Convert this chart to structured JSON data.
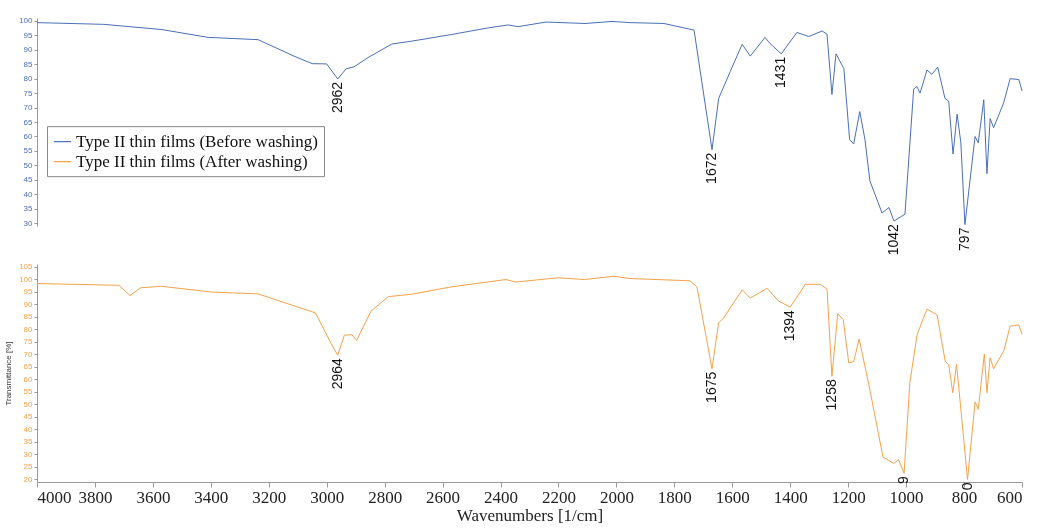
{
  "chart_data": [
    {
      "type": "line",
      "xlim": [
        4000,
        600
      ],
      "xticks": [
        4000,
        3800,
        3600,
        3400,
        3200,
        3000,
        2800,
        2600,
        2400,
        2200,
        2000,
        1800,
        1600,
        1400,
        1200,
        1000,
        800,
        600
      ],
      "ylim": [
        29,
        101
      ],
      "yticks": [
        30,
        35,
        40,
        45,
        50,
        55,
        60,
        65,
        70,
        75,
        80,
        85,
        90,
        95,
        100
      ],
      "tick_labels": "y",
      "legend": "left",
      "series": [
        {
          "name": "Type II thin films (Before washing)",
          "color": "#4a6fb5",
          "x": [
            4000,
            3769,
            3569,
            3410,
            3237,
            3106,
            3050,
            3000,
            2962,
            2933,
            2906,
            2854,
            2775,
            2706,
            2574,
            2441,
            2374,
            2340,
            2243,
            2108,
            2015,
            1953,
            1836,
            1732,
            1670,
            1647,
            1607,
            1566,
            1538,
            1487,
            1470,
            1431,
            1377,
            1336,
            1290,
            1273,
            1256,
            1242,
            1215,
            1195,
            1181,
            1160,
            1142,
            1125,
            1083,
            1059,
            1042,
            1004,
            974,
            963,
            952,
            928,
            911,
            891,
            866,
            853,
            838,
            824,
            811,
            797,
            762,
            751,
            732,
            721,
            710,
            698,
            663,
            641,
            611,
            600
          ],
          "values": [
            99.4,
            98.8,
            97.0,
            94.3,
            93.5,
            87.5,
            85.2,
            85.1,
            79.9,
            83.4,
            84.1,
            87.5,
            92.0,
            93.0,
            95.2,
            97.6,
            98.6,
            98.0,
            99.6,
            99.1,
            99.8,
            99.4,
            99.1,
            96.8,
            55.4,
            73.2,
            82.5,
            91.9,
            87.8,
            94.3,
            92.2,
            88.6,
            96.0,
            94.6,
            96.5,
            95.4,
            74.5,
            88.6,
            83.5,
            58.9,
            57.4,
            68.6,
            58.9,
            44.6,
            33.5,
            35.4,
            30.7,
            33.1,
            76.3,
            77.3,
            75.0,
            83.0,
            81.5,
            84.0,
            73.2,
            72.2,
            53.9,
            67.7,
            57.8,
            29.5,
            60.0,
            57.8,
            72.7,
            47.1,
            66.2,
            63.0,
            71.7,
            80.0,
            79.7,
            75.8
          ]
        }
      ],
      "annotations": [
        {
          "text": "2962",
          "x": 2962,
          "y": 79.9
        },
        {
          "text": "1672",
          "x": 1670,
          "y": 55.4
        },
        {
          "text": "1431",
          "x": 1431,
          "y": 88.6
        },
        {
          "text": "1042",
          "x": 1042,
          "y": 30.7
        },
        {
          "text": "797",
          "x": 797,
          "y": 29.5
        }
      ]
    },
    {
      "type": "line",
      "xlim": [
        4000,
        600
      ],
      "xticks": [
        4000,
        3800,
        3600,
        3400,
        3200,
        3000,
        2800,
        2600,
        2400,
        2200,
        2000,
        1800,
        1600,
        1400,
        1200,
        1000,
        800,
        600
      ],
      "ylim": [
        19,
        106
      ],
      "yticks": [
        20,
        25,
        30,
        35,
        40,
        45,
        50,
        55,
        60,
        65,
        70,
        75,
        80,
        85,
        90,
        95,
        100,
        105
      ],
      "xlabel": "Wavenumbers [1/cm]",
      "ylabel": "Transmittance [%]",
      "series": [
        {
          "name": "Type II thin films (After washing)",
          "color": "#f5a24b",
          "x": [
            4000,
            3717,
            3679,
            3643,
            3570,
            3397,
            3238,
            3039,
            2985,
            2962,
            2939,
            2913,
            2897,
            2847,
            2787,
            2707,
            2574,
            2381,
            2347,
            2202,
            2110,
            2009,
            1953,
            1746,
            1722,
            1670,
            1647,
            1630,
            1566,
            1538,
            1480,
            1440,
            1400,
            1348,
            1296,
            1273,
            1256,
            1236,
            1217,
            1198,
            1181,
            1162,
            1124,
            1080,
            1043,
            1026,
            1007,
            987,
            962,
            928,
            893,
            865,
            853,
            839,
            826,
            813,
            788,
            762,
            751,
            730,
            721,
            710,
            698,
            663,
            641,
            611,
            600
          ],
          "values": [
            98.2,
            97.5,
            93.4,
            96.5,
            97.1,
            94.8,
            94.1,
            86.5,
            74.3,
            69.6,
            77.6,
            77.8,
            75.5,
            87.2,
            93.0,
            93.9,
            96.8,
            99.8,
            98.8,
            100.5,
            99.8,
            101.1,
            100.2,
            99.3,
            96.9,
            64.2,
            82.6,
            84.4,
            95.7,
            92.4,
            96.3,
            91.2,
            88.8,
            97.9,
            97.9,
            96.0,
            61.2,
            86.2,
            83.8,
            66.5,
            67.1,
            76.1,
            55.2,
            29.0,
            26.4,
            27.9,
            22.5,
            58.8,
            77.9,
            88.0,
            85.7,
            67.1,
            65.9,
            54.6,
            65.9,
            50.5,
            20.0,
            51.0,
            48.0,
            70.1,
            54.6,
            68.6,
            64.2,
            71.3,
            81.2,
            81.7,
            77.9
          ]
        }
      ],
      "annotations": [
        {
          "text": "2964",
          "x": 2962,
          "y": 69.6
        },
        {
          "text": "1675",
          "x": 1670,
          "y": 64.2
        },
        {
          "text": "1394",
          "x": 1400,
          "y": 88.8
        },
        {
          "text": "1258",
          "x": 1256,
          "y": 61.2
        },
        {
          "text": "9",
          "x": 1007,
          "y": 22.5
        },
        {
          "text": "0",
          "x": 788,
          "y": 20.0
        }
      ]
    }
  ]
}
